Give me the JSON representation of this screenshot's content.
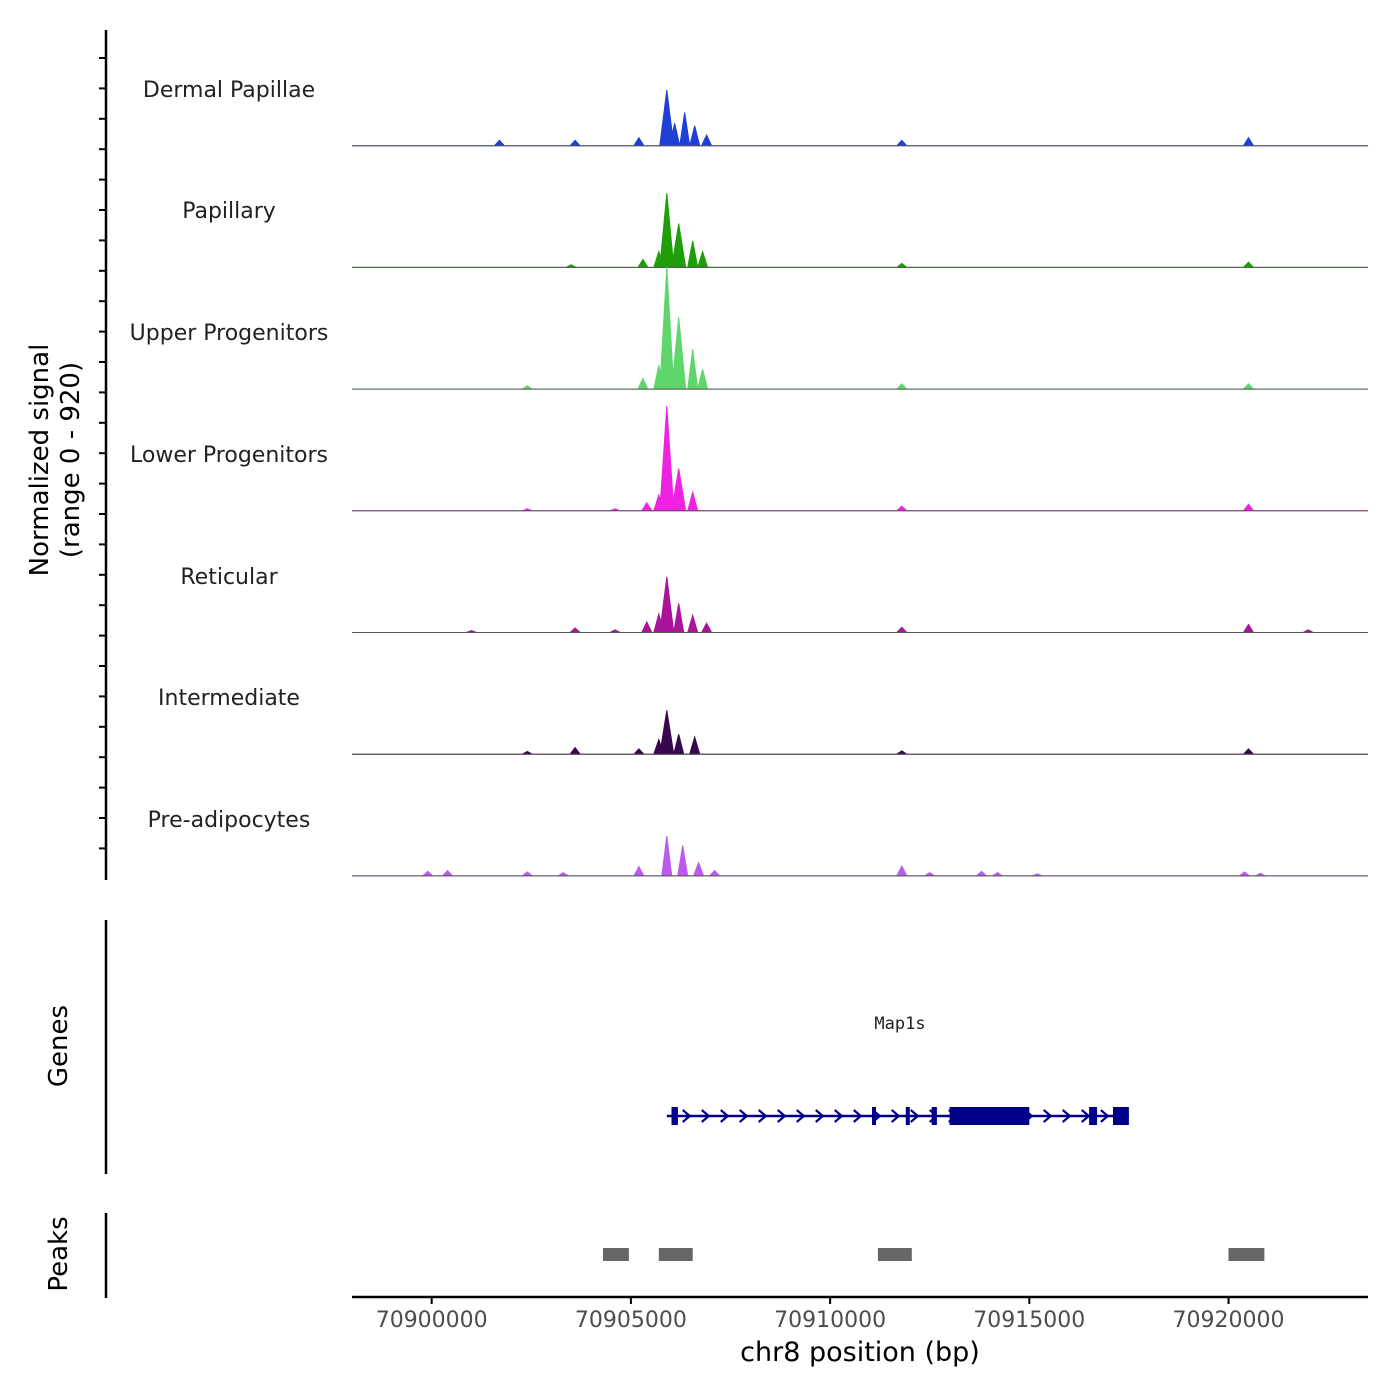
{
  "chart_data": {
    "type": "area",
    "title": "",
    "ylabel_line1": "Normalized signal",
    "ylabel_line2": "(range 0 - 920)",
    "xlabel": "chr8 position (bp)",
    "xlim": [
      70898000,
      70923500
    ],
    "ylim": [
      0,
      920
    ],
    "x_ticks": [
      70900000,
      70905000,
      70910000,
      70915000,
      70920000
    ],
    "x_tick_labels": [
      "70900000",
      "70905000",
      "70910000",
      "70915000",
      "70920000"
    ],
    "series": [
      {
        "name": "Dermal Papillae",
        "color": "#1f3fd6",
        "peaks": [
          [
            70901700,
            40
          ],
          [
            70903600,
            40
          ],
          [
            70905200,
            60
          ],
          [
            70905900,
            420
          ],
          [
            70906100,
            170
          ],
          [
            70906350,
            250
          ],
          [
            70906600,
            150
          ],
          [
            70906900,
            80
          ],
          [
            70911800,
            40
          ],
          [
            70920500,
            60
          ]
        ]
      },
      {
        "name": "Papillary",
        "color": "#1f9e0a",
        "peaks": [
          [
            70903500,
            20
          ],
          [
            70905300,
            60
          ],
          [
            70905700,
            120
          ],
          [
            70905900,
            560
          ],
          [
            70906200,
            330
          ],
          [
            70906550,
            200
          ],
          [
            70906800,
            120
          ],
          [
            70911800,
            30
          ],
          [
            70920500,
            40
          ]
        ]
      },
      {
        "name": "Upper Progenitors",
        "color": "#5ed66b",
        "peaks": [
          [
            70902400,
            25
          ],
          [
            70905300,
            80
          ],
          [
            70905700,
            180
          ],
          [
            70905900,
            920
          ],
          [
            70906200,
            540
          ],
          [
            70906550,
            300
          ],
          [
            70906800,
            150
          ],
          [
            70911800,
            40
          ],
          [
            70920500,
            40
          ]
        ]
      },
      {
        "name": "Lower Progenitors",
        "color": "#ee22e0",
        "peaks": [
          [
            70902400,
            15
          ],
          [
            70904600,
            15
          ],
          [
            70905400,
            60
          ],
          [
            70905700,
            120
          ],
          [
            70905900,
            790
          ],
          [
            70906200,
            320
          ],
          [
            70906550,
            140
          ],
          [
            70911800,
            35
          ],
          [
            70920500,
            50
          ]
        ]
      },
      {
        "name": "Reticular",
        "color": "#a8149a",
        "peaks": [
          [
            70901000,
            15
          ],
          [
            70903600,
            35
          ],
          [
            70904600,
            20
          ],
          [
            70905400,
            80
          ],
          [
            70905700,
            140
          ],
          [
            70905900,
            420
          ],
          [
            70906200,
            220
          ],
          [
            70906550,
            130
          ],
          [
            70906900,
            70
          ],
          [
            70911800,
            40
          ],
          [
            70920500,
            60
          ],
          [
            70922000,
            20
          ]
        ]
      },
      {
        "name": "Intermediate",
        "color": "#36064f",
        "peaks": [
          [
            70902400,
            20
          ],
          [
            70903600,
            50
          ],
          [
            70905200,
            40
          ],
          [
            70905700,
            110
          ],
          [
            70905900,
            330
          ],
          [
            70906200,
            150
          ],
          [
            70906600,
            130
          ],
          [
            70911800,
            25
          ],
          [
            70920500,
            40
          ]
        ]
      },
      {
        "name": "Pre-adipocytes",
        "color": "#bb5bee",
        "peaks": [
          [
            70899900,
            35
          ],
          [
            70900400,
            40
          ],
          [
            70902400,
            30
          ],
          [
            70903300,
            25
          ],
          [
            70905200,
            70
          ],
          [
            70905900,
            300
          ],
          [
            70906300,
            230
          ],
          [
            70906700,
            100
          ],
          [
            70907100,
            40
          ],
          [
            70911800,
            75
          ],
          [
            70912500,
            25
          ],
          [
            70913800,
            35
          ],
          [
            70914200,
            25
          ],
          [
            70915200,
            15
          ],
          [
            70920400,
            30
          ],
          [
            70920800,
            20
          ]
        ]
      }
    ],
    "genes": [
      {
        "name": "Map1s",
        "start": 70905900,
        "end": 70917500,
        "strand": "+",
        "color": "#00008b",
        "exons": [
          [
            70906020,
            70906180
          ],
          [
            70911050,
            70911120
          ],
          [
            70911900,
            70911960
          ],
          [
            70912550,
            70912680
          ],
          [
            70913000,
            70915000
          ],
          [
            70916500,
            70916700
          ],
          [
            70917100,
            70917500
          ]
        ]
      }
    ],
    "peaks_track": [
      {
        "start": 70904300,
        "end": 70904950,
        "color": "#666666"
      },
      {
        "start": 70905700,
        "end": 70906550,
        "color": "#666666"
      },
      {
        "start": 70911200,
        "end": 70912050,
        "color": "#666666"
      },
      {
        "start": 70920000,
        "end": 70920900,
        "color": "#666666"
      }
    ],
    "section_labels": {
      "genes": "Genes",
      "peaks": "Peaks"
    }
  }
}
